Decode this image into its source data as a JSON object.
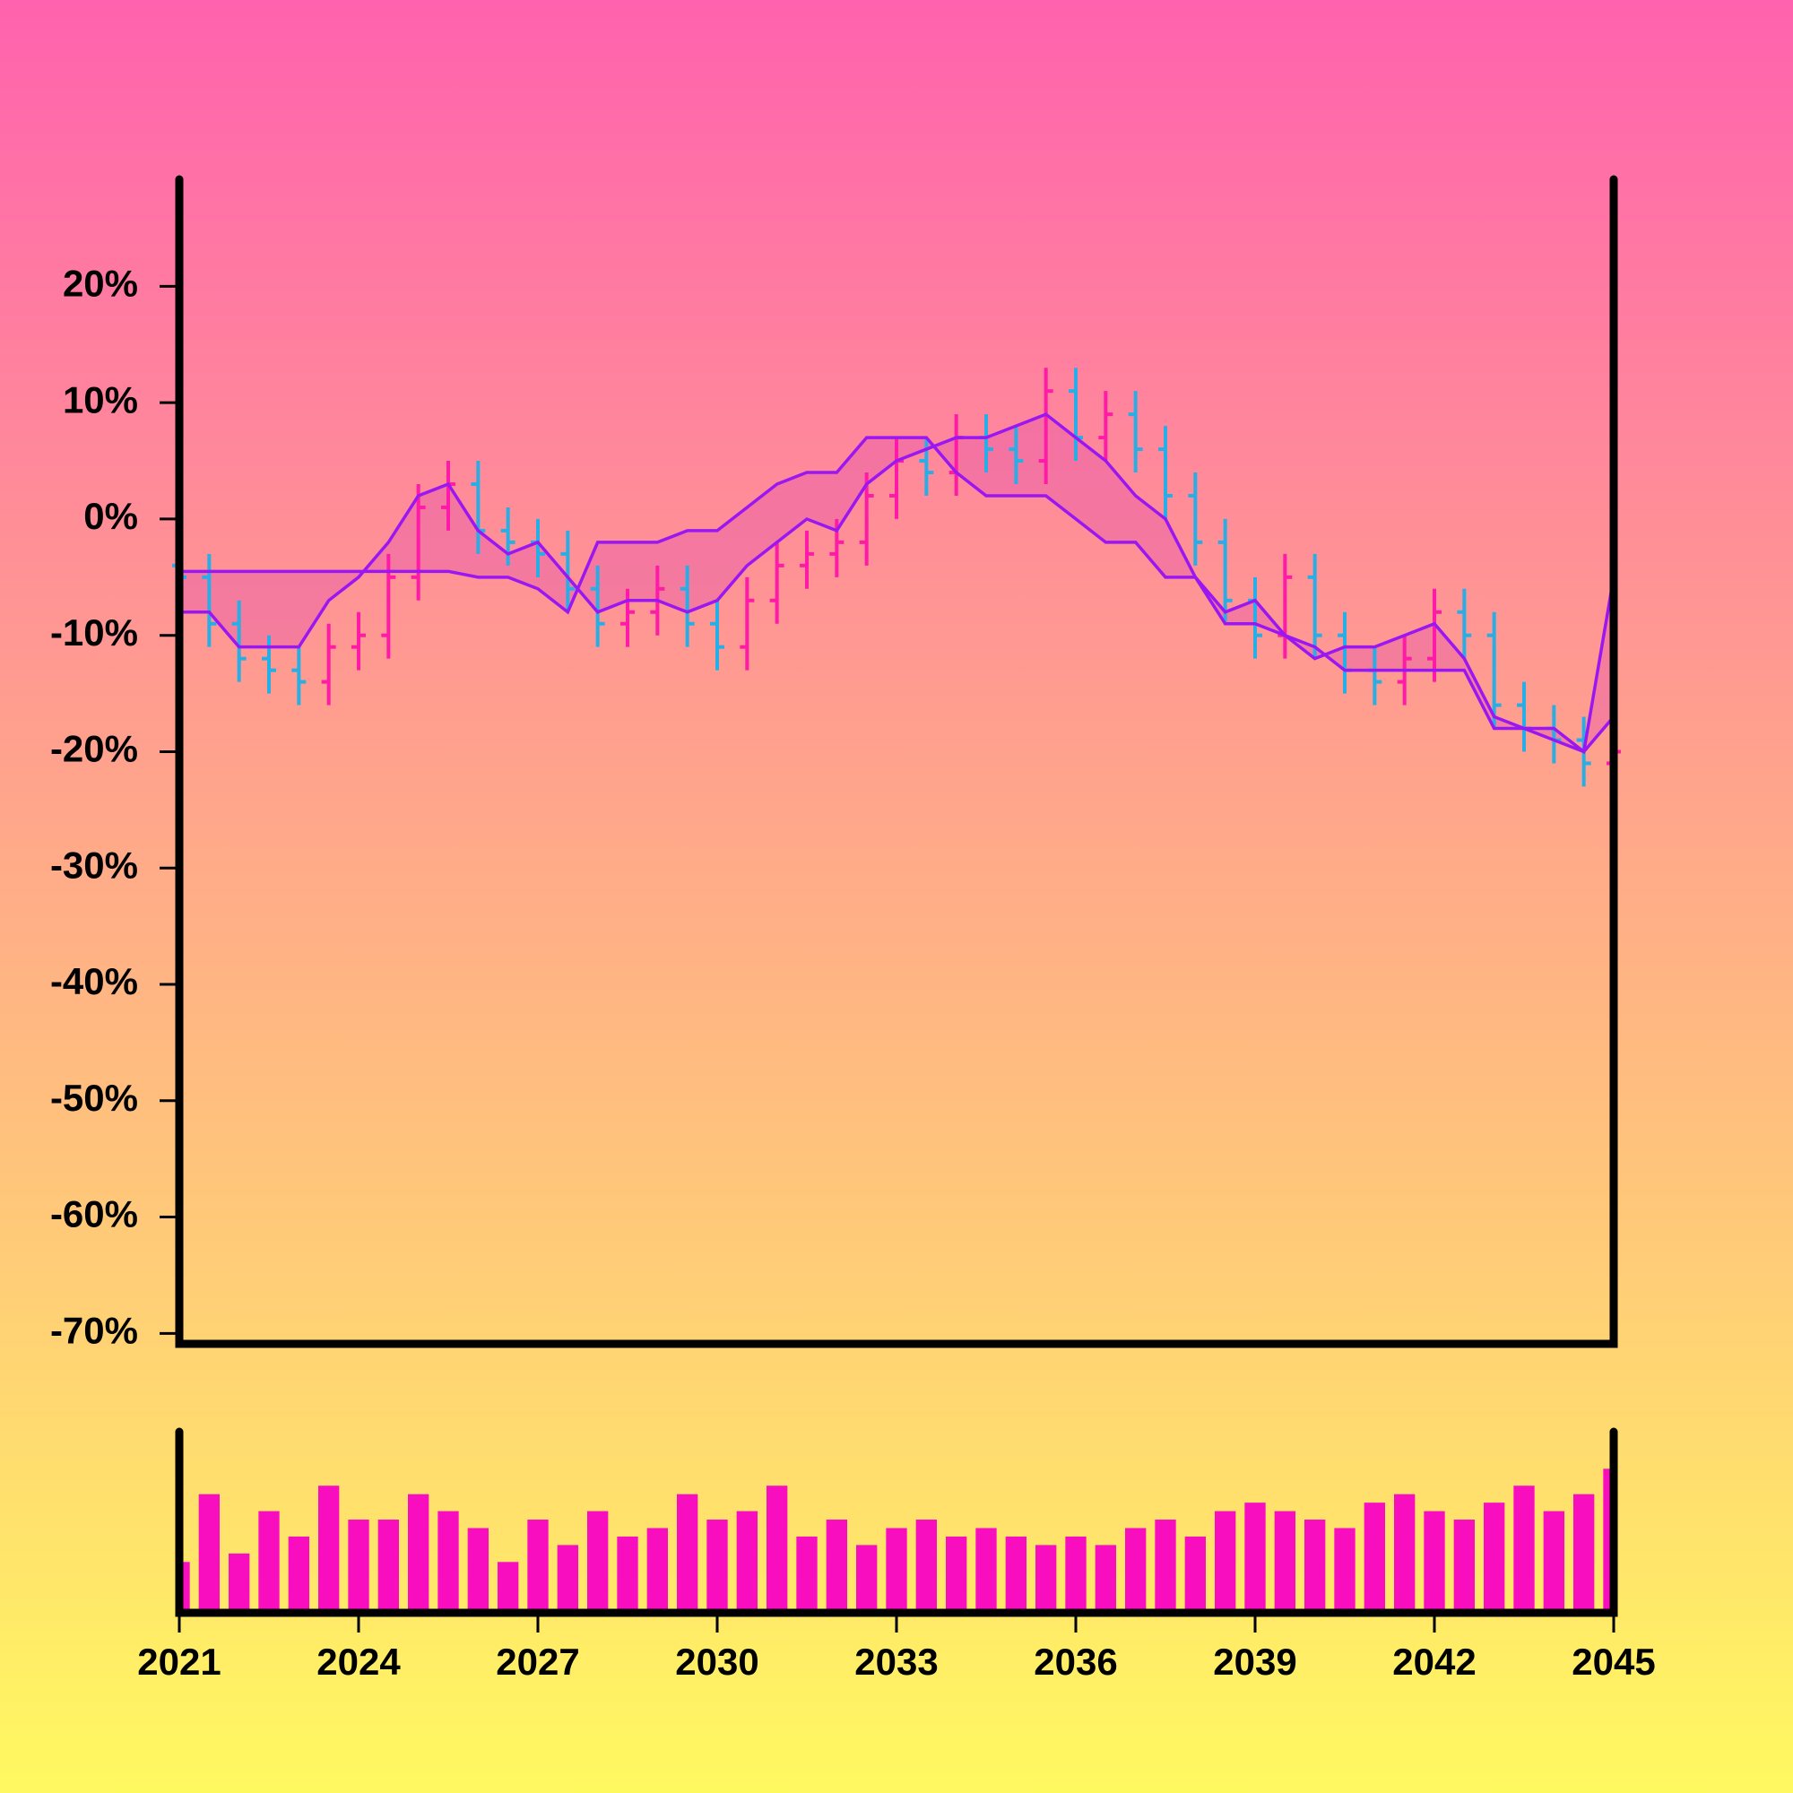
{
  "chart_data": {
    "type": "ohlc",
    "x": [
      2021,
      2021.5,
      2022,
      2022.5,
      2023,
      2023.5,
      2024,
      2024.5,
      2025,
      2025.5,
      2026,
      2026.5,
      2027,
      2027.5,
      2028,
      2028.5,
      2029,
      2029.5,
      2030,
      2030.5,
      2031,
      2031.5,
      2032,
      2032.5,
      2033,
      2033.5,
      2034,
      2034.5,
      2035,
      2035.5,
      2036,
      2036.5,
      2037,
      2037.5,
      2038,
      2038.5,
      2039,
      2039.5,
      2040,
      2040.5,
      2041,
      2041.5,
      2042,
      2042.5,
      2043,
      2043.5,
      2044,
      2044.5,
      2045
    ],
    "open": [
      -4,
      -5,
      -9,
      -12,
      -13,
      -14,
      -11,
      -10,
      -5,
      1,
      3,
      -1,
      -2,
      -3,
      -6,
      -9,
      -8,
      -6,
      -9,
      -11,
      -7,
      -4,
      -3,
      -2,
      2,
      5,
      4,
      7,
      6,
      5,
      11,
      7,
      9,
      6,
      2,
      -2,
      -7,
      -10,
      -5,
      -10,
      -13,
      -14,
      -12,
      -8,
      -10,
      -16,
      -18,
      -19,
      -21
    ],
    "high": [
      -2,
      -3,
      -7,
      -10,
      -11,
      -9,
      -8,
      -3,
      3,
      5,
      5,
      1,
      0,
      -1,
      -4,
      -6,
      -4,
      -4,
      -7,
      -5,
      -2,
      -1,
      0,
      4,
      7,
      7,
      9,
      9,
      8,
      13,
      13,
      11,
      11,
      8,
      4,
      0,
      -5,
      -3,
      -3,
      -8,
      -11,
      -10,
      -6,
      -6,
      -8,
      -14,
      -16,
      -17,
      -18
    ],
    "low": [
      -7,
      -11,
      -14,
      -15,
      -16,
      -16,
      -13,
      -12,
      -7,
      -1,
      -3,
      -4,
      -5,
      -8,
      -11,
      -11,
      -10,
      -11,
      -13,
      -13,
      -9,
      -6,
      -5,
      -4,
      0,
      2,
      2,
      4,
      3,
      3,
      5,
      5,
      4,
      0,
      -4,
      -9,
      -12,
      -12,
      -12,
      -15,
      -16,
      -16,
      -14,
      -12,
      -18,
      -20,
      -21,
      -23,
      -23
    ],
    "close": [
      -5,
      -9,
      -12,
      -13,
      -14,
      -11,
      -10,
      -5,
      1,
      3,
      -1,
      -2,
      -3,
      -6,
      -9,
      -8,
      -6,
      -9,
      -11,
      -7,
      -4,
      -3,
      -2,
      2,
      5,
      4,
      7,
      6,
      5,
      11,
      7,
      9,
      6,
      2,
      -2,
      -7,
      -10,
      -5,
      -10,
      -13,
      -14,
      -12,
      -8,
      -10,
      -16,
      -18,
      -19,
      -21,
      -20
    ],
    "up_color": "#ff1aa8",
    "down_color": "#27aee6",
    "lines": [
      {
        "color": "#9b17f2",
        "values": [
          -8,
          -8,
          -11,
          -11,
          -11,
          -7,
          -5,
          -2,
          2,
          3,
          -1,
          -3,
          -2,
          -5,
          -8,
          -7,
          -7,
          -8,
          -7,
          -4,
          -2,
          0,
          -1,
          3,
          5,
          6,
          7,
          7,
          8,
          9,
          7,
          5,
          2,
          0,
          -5,
          -8,
          -7,
          -10,
          -12,
          -11,
          -11,
          -10,
          -9,
          -12,
          -17,
          -18,
          -19,
          -20,
          -5
        ]
      },
      {
        "color": "#9b17f2",
        "values": [
          -4.5,
          -4.5,
          -4.5,
          -4.5,
          -4.5,
          -4.5,
          -4.5,
          -4.5,
          -4.5,
          -4.5,
          -5,
          -5,
          -6,
          -8,
          -2,
          -2,
          -2,
          -1,
          -1,
          1,
          3,
          4,
          4,
          7,
          7,
          7,
          4,
          2,
          2,
          2,
          0,
          -2,
          -2,
          -5,
          -5,
          -9,
          -9,
          -10,
          -11,
          -13,
          -13,
          -13,
          -13,
          -13,
          -18,
          -18,
          -18,
          -20,
          -17
        ]
      }
    ],
    "band_color": "rgba(230,90,170,0.45)",
    "volume": {
      "color": "#f80dbf",
      "ylim": [
        0,
        100
      ],
      "values": [
        30,
        70,
        35,
        60,
        45,
        75,
        55,
        55,
        70,
        60,
        50,
        30,
        55,
        40,
        60,
        45,
        50,
        70,
        55,
        60,
        75,
        45,
        55,
        40,
        50,
        55,
        45,
        50,
        45,
        40,
        45,
        40,
        50,
        55,
        45,
        60,
        65,
        60,
        55,
        50,
        65,
        70,
        60,
        55,
        65,
        75,
        60,
        70,
        85
      ]
    },
    "xlim": [
      2021,
      2045
    ],
    "xticks": [
      2021,
      2024,
      2027,
      2030,
      2033,
      2036,
      2039,
      2042,
      2045
    ],
    "ylim": [
      -70.9,
      29.2
    ],
    "yticks": [
      {
        "value": 20,
        "label": "20%"
      },
      {
        "value": 10,
        "label": "10%"
      },
      {
        "value": 0,
        "label": "0%"
      },
      {
        "value": -10,
        "label": "-10%"
      },
      {
        "value": -20,
        "label": "-20%"
      },
      {
        "value": -30,
        "label": "-30%"
      },
      {
        "value": -40,
        "label": "-40%"
      },
      {
        "value": -50,
        "label": "-50%"
      },
      {
        "value": -60,
        "label": "-60%"
      },
      {
        "value": -70,
        "label": "-70%"
      }
    ]
  }
}
